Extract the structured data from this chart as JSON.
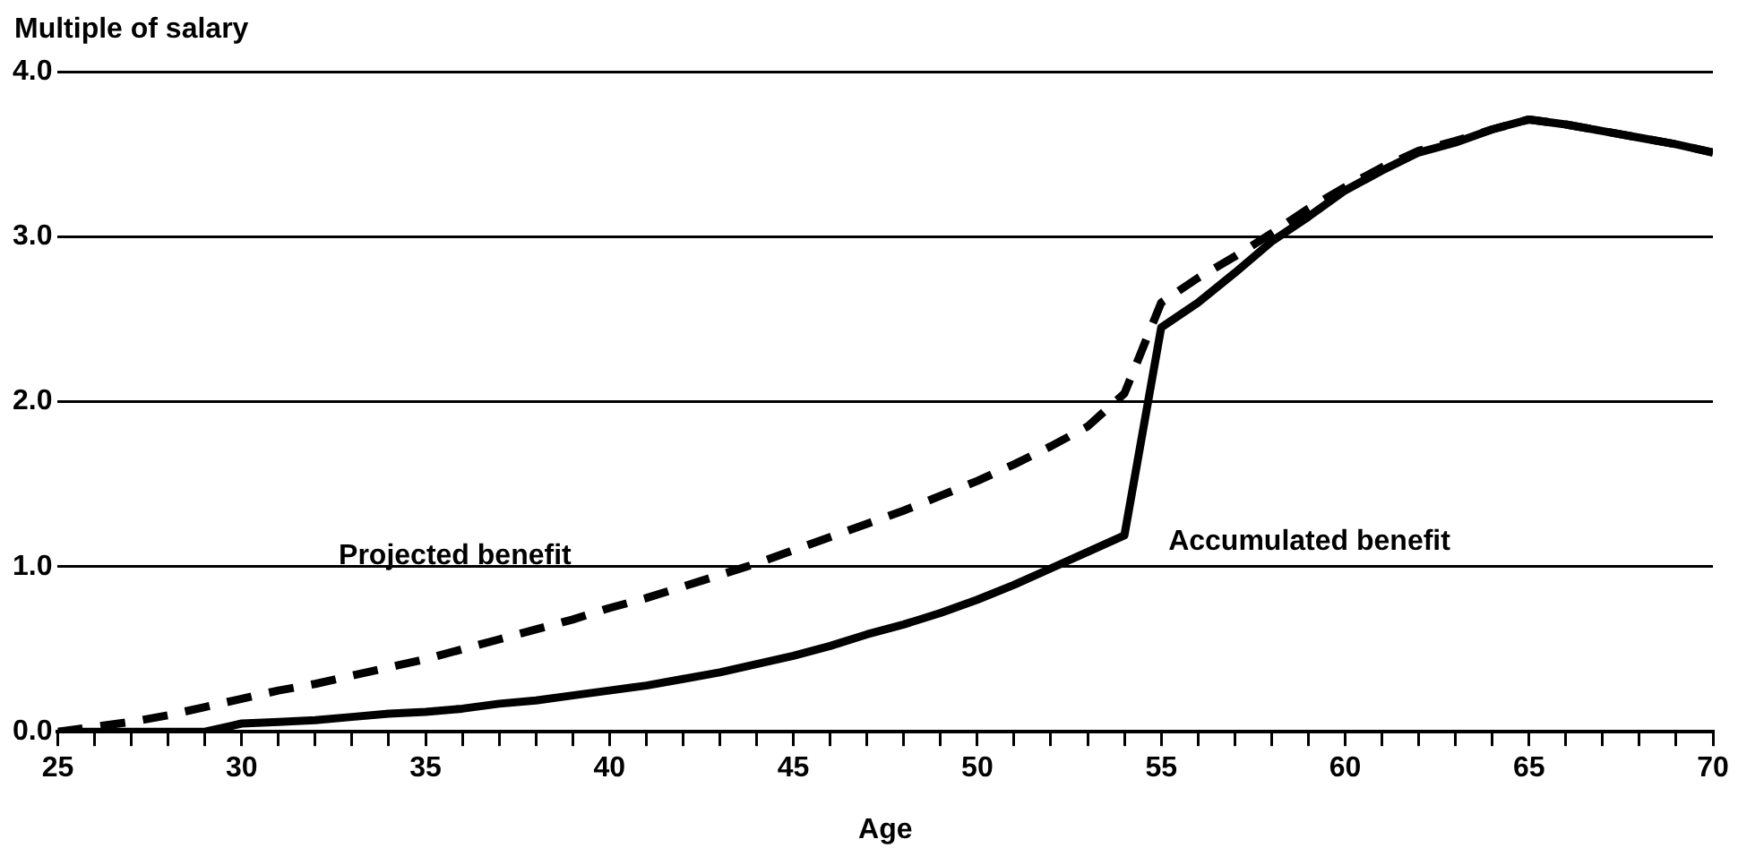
{
  "chart_data": {
    "type": "line",
    "ylabel": "Multiple of salary",
    "xlabel": "Age",
    "x": [
      25,
      26,
      27,
      28,
      29,
      30,
      31,
      32,
      33,
      34,
      35,
      36,
      37,
      38,
      39,
      40,
      41,
      42,
      43,
      44,
      45,
      46,
      47,
      48,
      49,
      50,
      51,
      52,
      53,
      54,
      55,
      56,
      57,
      58,
      59,
      60,
      61,
      62,
      63,
      64,
      65,
      66,
      67,
      68,
      69,
      70
    ],
    "series": [
      {
        "name": "Projected benefit",
        "color": "#000000",
        "line_style": "dashed",
        "values": [
          0,
          0.03,
          0.06,
          0.1,
          0.15,
          0.2,
          0.25,
          0.29,
          0.34,
          0.39,
          0.44,
          0.5,
          0.56,
          0.62,
          0.68,
          0.75,
          0.81,
          0.88,
          0.95,
          1.02,
          1.1,
          1.18,
          1.26,
          1.34,
          1.43,
          1.52,
          1.62,
          1.73,
          1.85,
          2.05,
          2.6,
          2.75,
          2.88,
          3.02,
          3.17,
          3.3,
          3.42,
          3.52,
          3.58,
          3.65,
          3.71,
          3.68,
          3.64,
          3.6,
          3.56,
          3.51
        ]
      },
      {
        "name": "Accumulated benefit",
        "color": "#000000",
        "line_style": "solid",
        "values": [
          0,
          0,
          0,
          0,
          0,
          0.05,
          0.06,
          0.07,
          0.09,
          0.11,
          0.12,
          0.14,
          0.17,
          0.19,
          0.22,
          0.25,
          0.28,
          0.32,
          0.36,
          0.41,
          0.46,
          0.52,
          0.59,
          0.65,
          0.72,
          0.8,
          0.89,
          0.99,
          1.09,
          1.19,
          2.45,
          2.6,
          2.78,
          2.97,
          3.12,
          3.28,
          3.4,
          3.51,
          3.57,
          3.65,
          3.71,
          3.68,
          3.64,
          3.6,
          3.56,
          3.51
        ]
      }
    ],
    "xlim": [
      25,
      70
    ],
    "xticks": [
      25,
      {
        "value": 26,
        "label": null
      },
      {
        "value": 27,
        "label": null
      },
      {
        "value": 28,
        "label": null
      },
      {
        "value": 29,
        "label": null
      },
      30,
      {
        "value": 31,
        "label": null
      },
      {
        "value": 32,
        "label": null
      },
      {
        "value": 33,
        "label": null
      },
      {
        "value": 34,
        "label": null
      },
      35,
      {
        "value": 36,
        "label": null
      },
      {
        "value": 37,
        "label": null
      },
      {
        "value": 38,
        "label": null
      },
      {
        "value": 39,
        "label": null
      },
      40,
      {
        "value": 41,
        "label": null
      },
      {
        "value": 42,
        "label": null
      },
      {
        "value": 43,
        "label": null
      },
      {
        "value": 44,
        "label": null
      },
      45,
      {
        "value": 46,
        "label": null
      },
      {
        "value": 47,
        "label": null
      },
      {
        "value": 48,
        "label": null
      },
      {
        "value": 49,
        "label": null
      },
      50,
      {
        "value": 51,
        "label": null
      },
      {
        "value": 52,
        "label": null
      },
      {
        "value": 53,
        "label": null
      },
      {
        "value": 54,
        "label": null
      },
      55,
      {
        "value": 56,
        "label": null
      },
      {
        "value": 57,
        "label": null
      },
      {
        "value": 58,
        "label": null
      },
      {
        "value": 59,
        "label": null
      },
      60,
      {
        "value": 61,
        "label": null
      },
      {
        "value": 62,
        "label": null
      },
      {
        "value": 63,
        "label": null
      },
      {
        "value": 64,
        "label": null
      },
      65,
      {
        "value": 66,
        "label": null
      },
      {
        "value": 67,
        "label": null
      },
      {
        "value": 68,
        "label": null
      },
      {
        "value": 69,
        "label": null
      },
      70
    ],
    "ylim": [
      0,
      4
    ],
    "yticks": [
      {
        "value": 0,
        "label": "0.0"
      },
      {
        "value": 1,
        "label": "1.0"
      },
      {
        "value": 2,
        "label": "2.0"
      },
      {
        "value": 3,
        "label": "3.0"
      },
      {
        "value": 4,
        "label": "4.0"
      }
    ],
    "grid": "y",
    "legend": false,
    "marker": "none"
  }
}
